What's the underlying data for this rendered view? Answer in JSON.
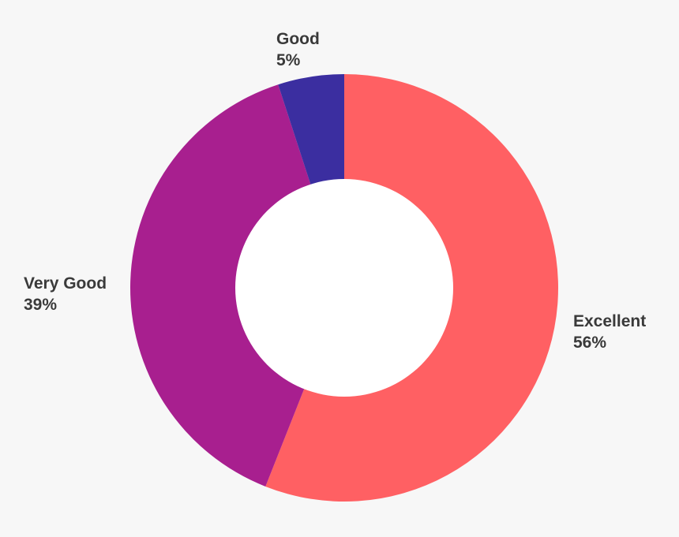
{
  "chart_data": {
    "type": "pie",
    "variant": "donut",
    "title": "",
    "slices": [
      {
        "label": "Excellent",
        "value": 56,
        "display": "56%",
        "color": "#ff6063"
      },
      {
        "label": "Very Good",
        "value": 39,
        "display": "39%",
        "color": "#a81f8f"
      },
      {
        "label": "Good",
        "value": 5,
        "display": "5%",
        "color": "#3b2ea0"
      }
    ],
    "start_angle_deg": 0,
    "direction": "clockwise",
    "background": "#f7f7f7",
    "hole_color": "#ffffff",
    "label_color": "#3a3a3a"
  }
}
